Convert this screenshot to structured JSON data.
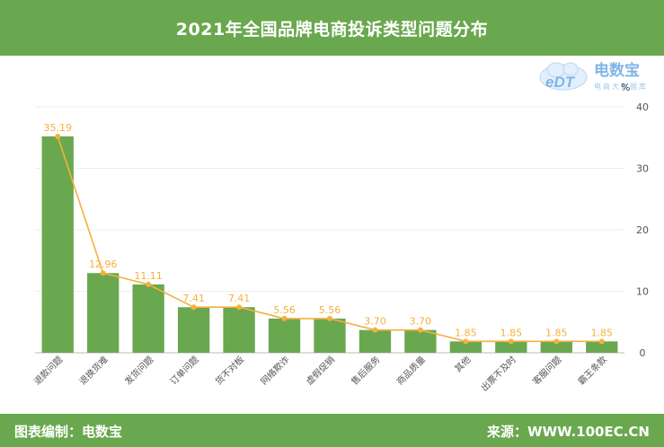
{
  "header": {
    "title": "2021年全国品牌电商投诉类型问题分布"
  },
  "footer": {
    "left": "图表编制：电数宝",
    "right": "来源：WWW.100EC.CN"
  },
  "logo": {
    "text_main": "电数宝",
    "text_sub": "电商大数据库",
    "badge": "eDT"
  },
  "colors": {
    "bar": "#6aa84f",
    "line": "#f4b03e",
    "header": "#6aa84f"
  },
  "chart_data": {
    "type": "bar",
    "title": "2021年全国品牌电商投诉类型问题分布",
    "unit": "%",
    "categories": [
      "退款问题",
      "退换货难",
      "发货问题",
      "订单问题",
      "货不对板",
      "网络欺诈",
      "虚假促销",
      "售后服务",
      "商品质量",
      "其他",
      "出票不及时",
      "客服问题",
      "霸王条款"
    ],
    "series": [
      {
        "type": "bar",
        "values": [
          35.19,
          12.96,
          11.11,
          7.41,
          7.41,
          5.56,
          5.56,
          3.7,
          3.7,
          1.85,
          1.85,
          1.85,
          1.85
        ]
      },
      {
        "type": "line",
        "values": [
          35.19,
          12.96,
          11.11,
          7.41,
          7.41,
          5.56,
          5.56,
          3.7,
          3.7,
          1.85,
          1.85,
          1.85,
          1.85
        ]
      }
    ],
    "data_labels": [
      "35.19",
      "12.96",
      "11.11",
      "7.41",
      "7.41",
      "5.56",
      "5.56",
      "3.70",
      "3.70",
      "1.85",
      "1.85",
      "1.85",
      "1.85"
    ],
    "y_ticks": [
      "0",
      "10",
      "20",
      "30",
      "40"
    ],
    "ylim": [
      0,
      40
    ],
    "y_axis_position": "right",
    "grid": true,
    "legend": "none"
  }
}
